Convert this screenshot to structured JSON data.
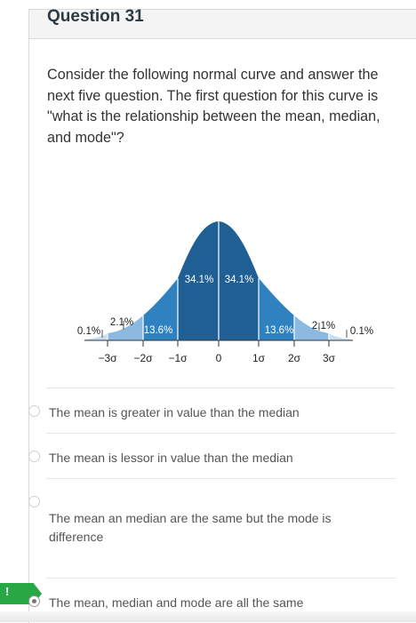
{
  "header": {
    "question_title": "Question 31"
  },
  "question": {
    "text": "Consider the following normal curve and answer the next five question.  The first question for this curve is \"what is the relationship between the mean, median, and mode\"?"
  },
  "figure": {
    "center_labels": [
      "34.1%",
      "34.1%"
    ],
    "inner_labels": [
      "13.6%",
      "13.6%"
    ],
    "outer_labels": [
      "2.1%",
      "2.1%"
    ],
    "tail_labels": [
      "0.1%",
      "0.1%"
    ],
    "axis_ticks": [
      "−3σ",
      "−2σ",
      "−1σ",
      "0",
      "1σ",
      "2σ",
      "3σ"
    ],
    "colors": {
      "center": "#1f5f93",
      "inner": "#2f82bf",
      "outer": "#8cb9e0",
      "tail": "#c6ddf2",
      "line": "#ffffff"
    }
  },
  "options": [
    {
      "label": "The mean is greater in value than the median",
      "selected": false
    },
    {
      "label": "The mean is lessor in value than the median",
      "selected": false
    },
    {
      "label": "The mean an median are the same but the mode is difference",
      "selected": false
    },
    {
      "label": "The mean, median and mode are all the same",
      "selected": true
    }
  ]
}
